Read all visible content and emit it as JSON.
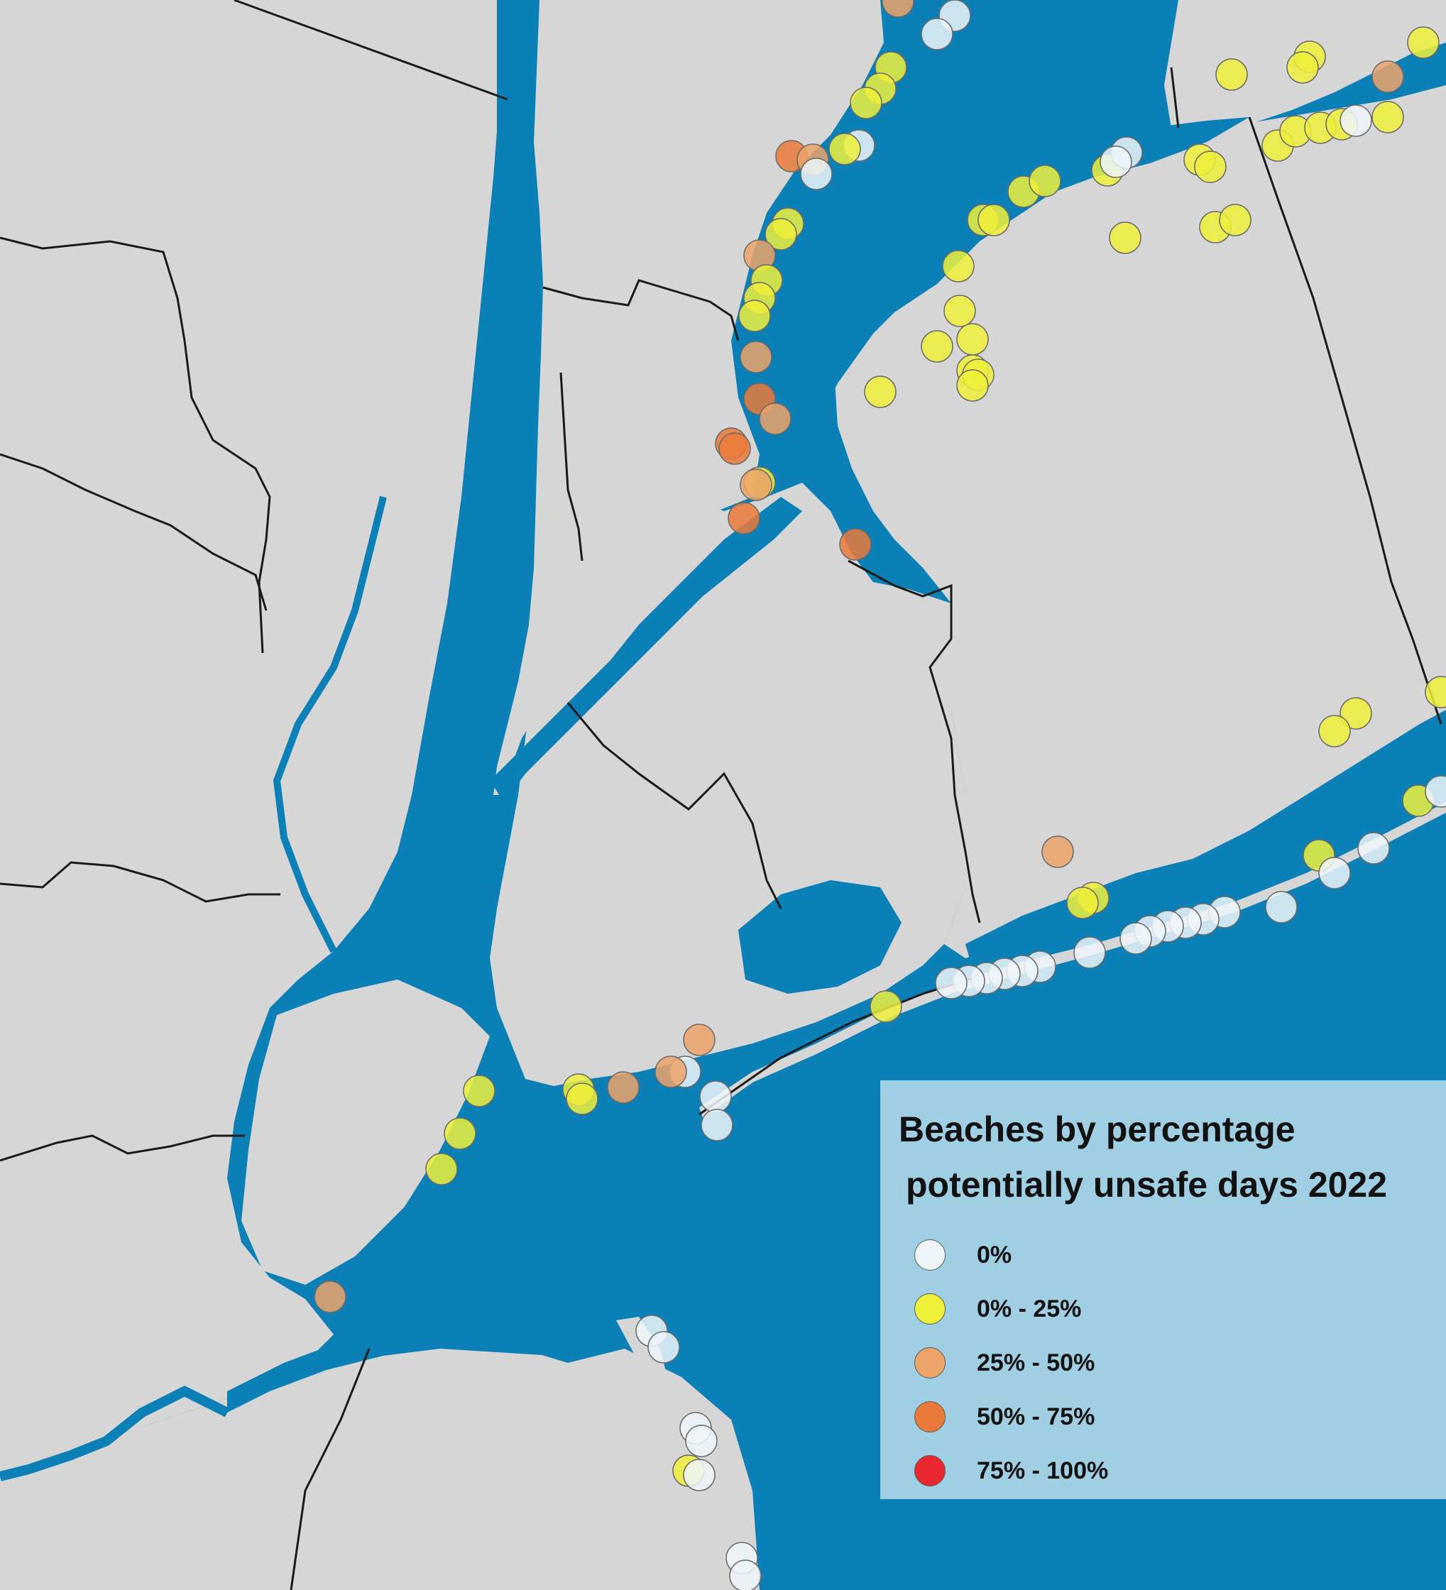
{
  "colors": {
    "water": "#0a80b6",
    "land": "#d6d6d6",
    "border": "#1a1a1a",
    "legend_bg": "#a0cfe4"
  },
  "legend": {
    "title_line1": "Beaches by percentage",
    "title_line2": "potentially unsafe days 2022",
    "items": [
      {
        "label": "0%",
        "color": "#eef6fa"
      },
      {
        "label": "0% - 25%",
        "color": "#eef03a"
      },
      {
        "label": "25% - 50%",
        "color": "#eda36a"
      },
      {
        "label": "50% - 75%",
        "color": "#ea7a3a"
      },
      {
        "label": "75% - 100%",
        "color": "#e8282e"
      }
    ]
  }
}
